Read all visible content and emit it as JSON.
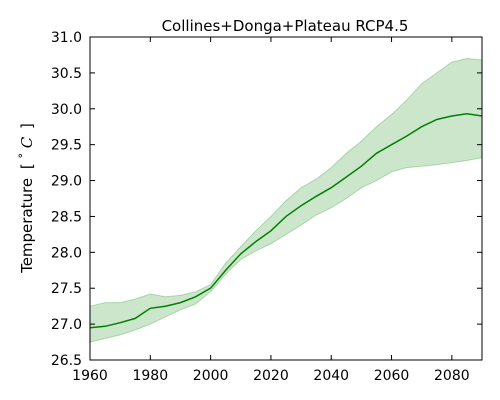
{
  "chart_data": {
    "type": "line",
    "title": "Collines+Donga+Plateau RCP4.5",
    "xlabel": "",
    "ylabel": "Temperature",
    "ylabel_unit_open": "[ ",
    "ylabel_unit_deg": "°",
    "ylabel_unit_c": "C",
    "ylabel_unit_close": "]",
    "xlim": [
      1960,
      2090
    ],
    "ylim": [
      26.5,
      31.0
    ],
    "x_ticks": [
      1960,
      1980,
      2000,
      2020,
      2040,
      2060,
      2080
    ],
    "x_tick_labels": [
      "1960",
      "1980",
      "2000",
      "2020",
      "2040",
      "2060",
      "2080"
    ],
    "y_ticks": [
      26.5,
      27.0,
      27.5,
      28.0,
      28.5,
      29.0,
      29.5,
      30.0,
      30.5,
      31.0
    ],
    "y_tick_labels": [
      "26.5",
      "27.0",
      "27.5",
      "28.0",
      "28.5",
      "29.0",
      "29.5",
      "30.0",
      "30.5",
      "31.0"
    ],
    "grid": false,
    "legend": "none",
    "line_color": "#008000",
    "band_color": "#008000",
    "x": [
      1960,
      1965,
      1970,
      1975,
      1980,
      1985,
      1990,
      1995,
      2000,
      2005,
      2010,
      2015,
      2020,
      2025,
      2030,
      2035,
      2040,
      2045,
      2050,
      2055,
      2060,
      2065,
      2070,
      2075,
      2080,
      2085,
      2090
    ],
    "series": [
      {
        "values": [
          26.95,
          26.97,
          27.02,
          27.08,
          27.22,
          27.25,
          27.3,
          27.38,
          27.5,
          27.75,
          27.98,
          28.15,
          28.3,
          28.5,
          28.65,
          28.78,
          28.9,
          29.05,
          29.2,
          29.38,
          29.5,
          29.62,
          29.75,
          29.85,
          29.9,
          29.93,
          29.9
        ]
      },
      {
        "name": "",
        "values_low": [
          26.75,
          26.8,
          26.85,
          26.92,
          27.0,
          27.1,
          27.2,
          27.28,
          27.45,
          27.7,
          27.9,
          28.02,
          28.12,
          28.25,
          28.38,
          28.52,
          28.62,
          28.75,
          28.9,
          29.0,
          29.12,
          29.18,
          29.2,
          29.22,
          29.25,
          29.28,
          29.32
        ],
        "values_high": [
          27.25,
          27.3,
          27.3,
          27.35,
          27.42,
          27.38,
          27.4,
          27.45,
          27.55,
          27.85,
          28.08,
          28.3,
          28.5,
          28.72,
          28.9,
          29.02,
          29.18,
          29.38,
          29.55,
          29.75,
          29.92,
          30.12,
          30.35,
          30.5,
          30.65,
          30.7,
          30.68
        ]
      }
    ]
  }
}
